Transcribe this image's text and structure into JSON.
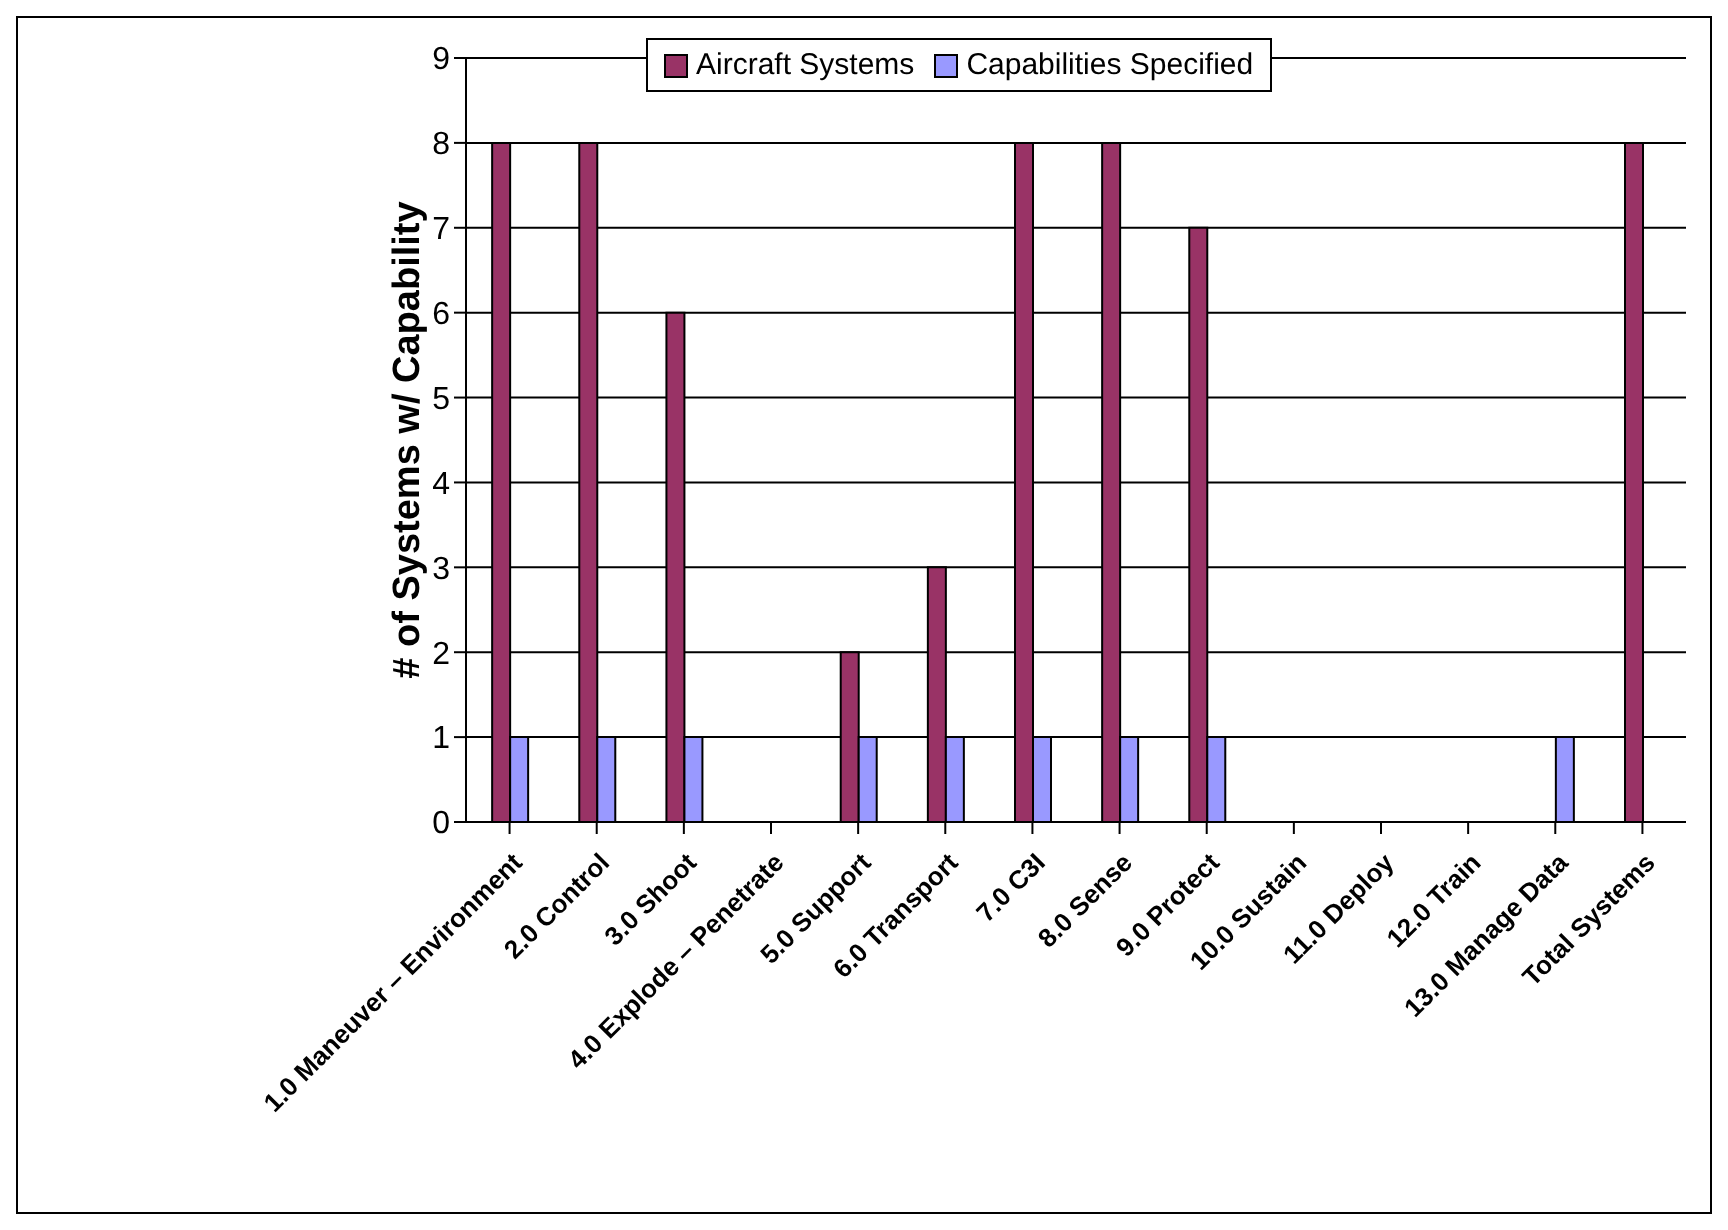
{
  "chart_data": {
    "type": "bar",
    "ylabel": "# of Systems w/ Capability",
    "categories": [
      "1.0 Maneuver – Environment",
      "2.0 Control",
      "3.0 Shoot",
      "4.0 Explode – Penetrate",
      "5.0 Support",
      "6.0 Transport",
      "7.0 C3I",
      "8.0 Sense",
      "9.0 Protect",
      "10.0 Sustain",
      "11.0 Deploy",
      "12.0 Train",
      "13.0 Manage Data",
      "Total Systems"
    ],
    "series": [
      {
        "name": "Aircraft Systems",
        "color": "#993366",
        "values": [
          8,
          8,
          6,
          null,
          2,
          3,
          8,
          8,
          7,
          null,
          null,
          null,
          null,
          8
        ]
      },
      {
        "name": "Capabilities Specified",
        "color": "#9999ff",
        "values": [
          1,
          1,
          1,
          null,
          1,
          1,
          1,
          1,
          1,
          null,
          null,
          null,
          1,
          null
        ]
      }
    ],
    "ylim": [
      0,
      9
    ],
    "yticks": [
      0,
      1,
      2,
      3,
      4,
      5,
      6,
      7,
      8,
      9
    ],
    "grid": "y",
    "legend": "top"
  }
}
